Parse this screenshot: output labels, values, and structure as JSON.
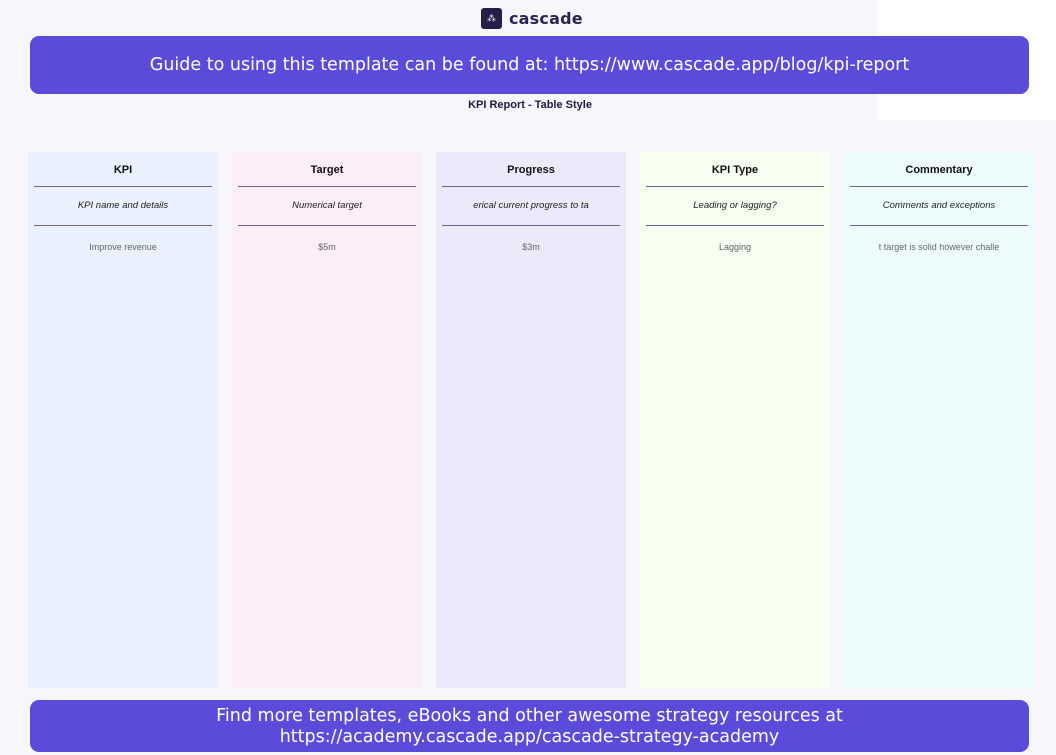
{
  "brand": {
    "name": "cascade"
  },
  "banner_top": "Guide to using this template can be found at: https://www.cascade.app/blog/kpi-report",
  "subtitle": "KPI Report - Table Style",
  "columns": [
    {
      "header": "KPI",
      "description": "KPI name and details",
      "value": "Improve revenue",
      "color": "#eaf0fd"
    },
    {
      "header": "Target",
      "description": "Numerical target",
      "value": "$5m",
      "color": "#fcedf6"
    },
    {
      "header": "Progress",
      "description": "erical current progress to ta",
      "value": "$3m",
      "color": "#ede9fb"
    },
    {
      "header": "KPI Type",
      "description": "Leading or lagging?",
      "value": "Lagging",
      "color": "#f8fef0"
    },
    {
      "header": "Commentary",
      "description": "Comments and exceptions",
      "value": "t target is solid however challe",
      "color": "#edfcfd"
    }
  ],
  "banner_bottom_line1": "Find more templates, eBooks and other awesome strategy resources at",
  "banner_bottom_line2": "https://academy.cascade.app/cascade-strategy-academy",
  "accent": "#5b4bdb"
}
